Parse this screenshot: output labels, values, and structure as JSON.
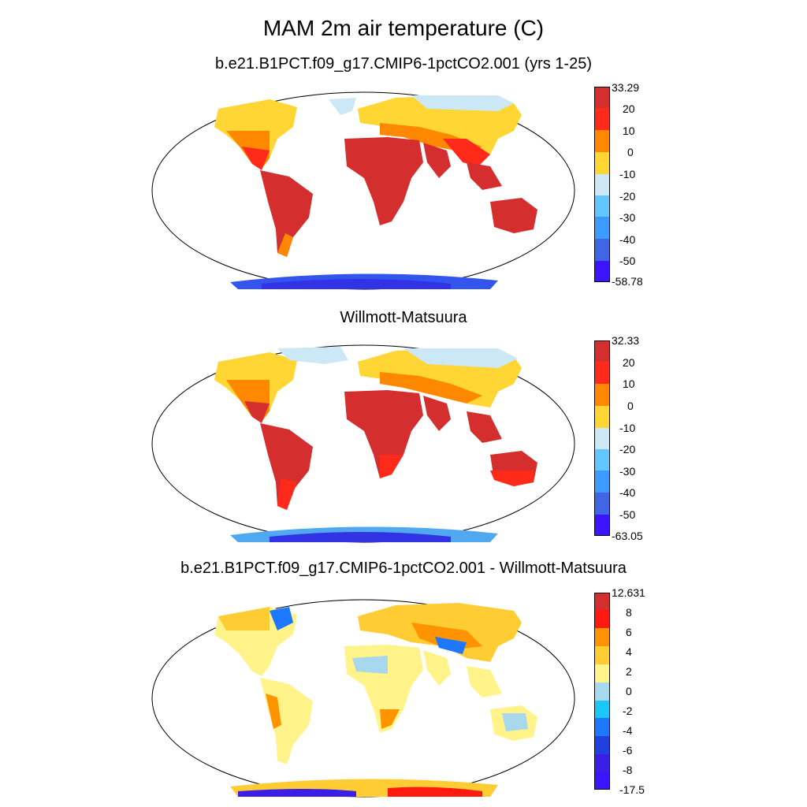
{
  "title": "MAM 2m air temperature (C)",
  "panels": [
    {
      "title": "b.e21.B1PCT.f09_g17.CMIP6-1pctCO2.001 (yrs 1-25)",
      "colors": [
        "#3333e6",
        "#4d4de6",
        "#3377ff",
        "#4fa8f0",
        "#63c6ff",
        "#cce8f7",
        "#ffd633",
        "#ff8800",
        "#ff2a1a",
        "#d42e2e"
      ],
      "labels": [
        "33.29",
        "20",
        "10",
        "0",
        "-10",
        "-20",
        "-30",
        "-40",
        "-50",
        "-58.78"
      ]
    },
    {
      "title": "Willmott-Matsuura",
      "colors": [
        "#3333e6",
        "#4d4de6",
        "#3377ff",
        "#4fa8f0",
        "#63c6ff",
        "#cce8f7",
        "#ffd633",
        "#ff8800",
        "#ff2a1a",
        "#d42e2e"
      ],
      "labels": [
        "32.33",
        "20",
        "10",
        "0",
        "-10",
        "-20",
        "-30",
        "-40",
        "-50",
        "-63.05"
      ]
    },
    {
      "title": "b.e21.B1PCT.f09_g17.CMIP6-1pctCO2.001 - Willmott-Matsuura",
      "colors": [
        "#3b1fe6",
        "#2040e0",
        "#1e78ff",
        "#1ab0ff",
        "#19c8f5",
        "#a8d8ee",
        "#fff38a",
        "#ffcc33",
        "#ff9400",
        "#ff1a10",
        "#d42e2e"
      ],
      "labels": [
        "12.631",
        "8",
        "6",
        "4",
        "2",
        "0",
        "-2",
        "-4",
        "-6",
        "-8",
        "-17.5"
      ]
    }
  ],
  "color_roles": {
    "land_warm": "#d42e2e",
    "land_mid": "#ff8800",
    "land_cool": "#ffd633",
    "ice": "#3355ee",
    "ocean": "#ffffff"
  }
}
